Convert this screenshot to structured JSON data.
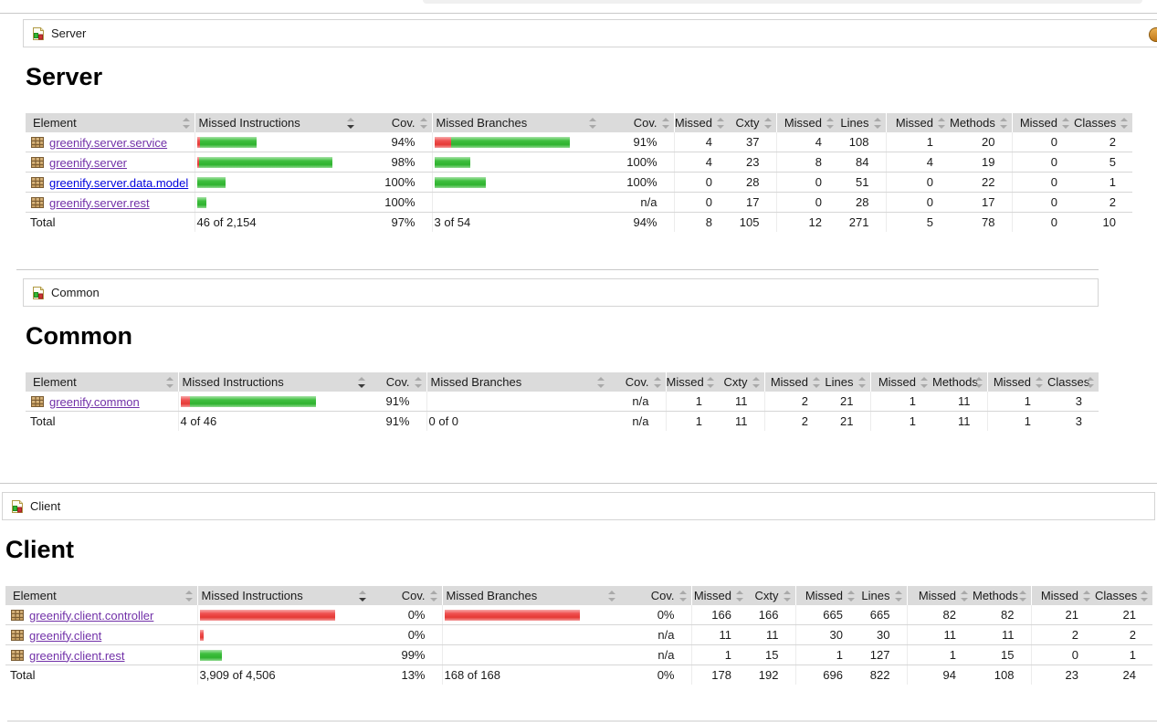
{
  "column_headers": [
    "Element",
    "Missed Instructions",
    "Cov.",
    "Missed Branches",
    "Cov.",
    "Missed",
    "Cxty",
    "Missed",
    "Lines",
    "Missed",
    "Methods",
    "Missed",
    "Classes"
  ],
  "sorted_column": "Missed Instructions",
  "sort_direction": "desc",
  "colors": {
    "bar_green": "#3fbf3f",
    "bar_red": "#ef5050",
    "header_bg": "#dbdbdb",
    "link_visited": "#7130A8",
    "link_new": "#0000DD"
  },
  "icons": {
    "breadcrumb": "report-group-icon",
    "package": "java-package-icon",
    "right_edge": "session-icon-fragment"
  },
  "sections": [
    {
      "key": "server",
      "breadcrumb": "Server",
      "heading": "Server",
      "rows": [
        {
          "element": "greenify.server.service",
          "visited": true,
          "instr_bar": {
            "red": 3,
            "green": 62
          },
          "instr_cov": "94%",
          "branch_bar": {
            "red": 18,
            "green": 130
          },
          "branch_cov": "91%",
          "nums": [
            "4",
            "37",
            "4",
            "108",
            "1",
            "20",
            "0",
            "2"
          ]
        },
        {
          "element": "greenify.server",
          "visited": true,
          "instr_bar": {
            "red": 2,
            "green": 146
          },
          "instr_cov": "98%",
          "branch_bar": {
            "red": 0,
            "green": 39
          },
          "branch_cov": "100%",
          "nums": [
            "4",
            "23",
            "8",
            "84",
            "4",
            "19",
            "0",
            "5"
          ]
        },
        {
          "element": "greenify.server.data.model",
          "visited": false,
          "instr_bar": {
            "red": 0,
            "green": 31
          },
          "instr_cov": "100%",
          "branch_bar": {
            "red": 0,
            "green": 56
          },
          "branch_cov": "100%",
          "nums": [
            "0",
            "28",
            "0",
            "51",
            "0",
            "22",
            "0",
            "1"
          ]
        },
        {
          "element": "greenify.server.rest",
          "visited": true,
          "instr_bar": {
            "red": 0,
            "green": 10
          },
          "instr_cov": "100%",
          "branch_bar": {
            "red": 0,
            "green": 0
          },
          "branch_cov": "n/a",
          "nums": [
            "0",
            "17",
            "0",
            "28",
            "0",
            "17",
            "0",
            "2"
          ]
        }
      ],
      "total": {
        "label": "Total",
        "instr": "46 of 2,154",
        "instr_cov": "97%",
        "branch": "3 of 54",
        "branch_cov": "94%",
        "nums": [
          "8",
          "105",
          "12",
          "271",
          "5",
          "78",
          "0",
          "10"
        ]
      }
    },
    {
      "key": "common",
      "breadcrumb": "Common",
      "heading": "Common",
      "rows": [
        {
          "element": "greenify.common",
          "visited": true,
          "instr_bar": {
            "red": 10,
            "green": 138
          },
          "instr_cov": "91%",
          "branch_bar": {
            "red": 0,
            "green": 0
          },
          "branch_cov": "n/a",
          "nums": [
            "1",
            "11",
            "2",
            "21",
            "1",
            "11",
            "1",
            "3"
          ]
        }
      ],
      "total": {
        "label": "Total",
        "instr": "4 of 46",
        "instr_cov": "91%",
        "branch": "0 of 0",
        "branch_cov": "n/a",
        "nums": [
          "1",
          "11",
          "2",
          "21",
          "1",
          "11",
          "1",
          "3"
        ]
      }
    },
    {
      "key": "client",
      "breadcrumb": "Client",
      "heading": "Client",
      "rows": [
        {
          "element": "greenify.client.controller",
          "visited": true,
          "instr_bar": {
            "red": 148,
            "green": 0
          },
          "instr_cov": "0%",
          "branch_bar": {
            "red": 148,
            "green": 0
          },
          "branch_cov": "0%",
          "nums": [
            "166",
            "166",
            "665",
            "665",
            "82",
            "82",
            "21",
            "21"
          ]
        },
        {
          "element": "greenify.client",
          "visited": true,
          "instr_bar": {
            "red": 4,
            "green": 0
          },
          "instr_cov": "0%",
          "branch_bar": {
            "red": 0,
            "green": 0
          },
          "branch_cov": "n/a",
          "nums": [
            "11",
            "11",
            "30",
            "30",
            "11",
            "11",
            "2",
            "2"
          ]
        },
        {
          "element": "greenify.client.rest",
          "visited": true,
          "instr_bar": {
            "red": 0,
            "green": 24
          },
          "instr_cov": "99%",
          "branch_bar": {
            "red": 0,
            "green": 0
          },
          "branch_cov": "n/a",
          "nums": [
            "1",
            "15",
            "1",
            "127",
            "1",
            "15",
            "0",
            "1"
          ]
        }
      ],
      "total": {
        "label": "Total",
        "instr": "3,909 of 4,506",
        "instr_cov": "13%",
        "branch": "168 of 168",
        "branch_cov": "0%",
        "nums": [
          "178",
          "192",
          "696",
          "822",
          "94",
          "108",
          "23",
          "24"
        ]
      }
    }
  ]
}
